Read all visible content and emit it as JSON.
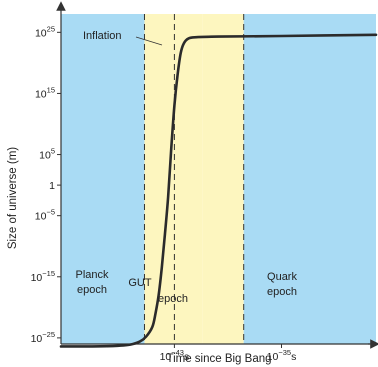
{
  "chart_data": {
    "type": "line",
    "title": "",
    "xlabel": "Time since Big Bang",
    "ylabel": "Size of universe (m)",
    "y_scale": "log",
    "ylim_exponent": [
      -26,
      28
    ],
    "y_ticks": [
      {
        "base": "10",
        "exp": "25",
        "value": 25
      },
      {
        "base": "10",
        "exp": "15",
        "value": 15
      },
      {
        "base": "10",
        "exp": "5",
        "value": 5
      },
      {
        "base": "1",
        "exp": "",
        "value": 0
      },
      {
        "base": "10",
        "exp": "−5",
        "value": -5
      },
      {
        "base": "10",
        "exp": "−15",
        "value": -15
      },
      {
        "base": "10",
        "exp": "−25",
        "value": -25
      }
    ],
    "x_ticks": [
      {
        "base": "10",
        "exp": "−43",
        "unit": "s",
        "pos": 0.36
      },
      {
        "base": "10",
        "exp": "−35",
        "unit": "s",
        "pos": 0.7
      }
    ],
    "regions": [
      {
        "lines": [
          "Planck",
          "epoch"
        ],
        "color": "#a9dbf4",
        "start": 0.0,
        "end": 0.265
      },
      {
        "lines": [
          "GUT"
        ],
        "color": "#fdf6bf",
        "start": 0.265,
        "end": 0.45
      },
      {
        "lines": [
          "epoch"
        ],
        "color": "#fdf6bf",
        "start": 0.45,
        "end": 0.58
      },
      {
        "lines": [
          "Quark",
          "epoch"
        ],
        "color": "#a9dbf4",
        "start": 0.58,
        "end": 1.0
      }
    ],
    "series": [
      {
        "color": "#2b2b2b",
        "points": [
          [
            0.0,
            -26.4
          ],
          [
            0.1,
            -26.4
          ],
          [
            0.18,
            -26.3
          ],
          [
            0.22,
            -26.1
          ],
          [
            0.25,
            -25.6
          ],
          [
            0.27,
            -24.8
          ],
          [
            0.29,
            -23.2
          ],
          [
            0.3,
            -21.0
          ],
          [
            0.31,
            -18.0
          ],
          [
            0.32,
            -13.5
          ],
          [
            0.33,
            -8.0
          ],
          [
            0.34,
            -2.0
          ],
          [
            0.35,
            6.0
          ],
          [
            0.36,
            13.0
          ],
          [
            0.37,
            18.0
          ],
          [
            0.38,
            21.6
          ],
          [
            0.39,
            23.2
          ],
          [
            0.405,
            24.0
          ],
          [
            0.43,
            24.2
          ],
          [
            0.5,
            24.3
          ],
          [
            0.7,
            24.4
          ],
          [
            1.0,
            24.6
          ]
        ]
      }
    ],
    "annotations": [
      {
        "text": "Inflation",
        "type": "callout"
      }
    ],
    "dashed_lines": [
      0.265,
      0.36,
      0.58
    ]
  }
}
